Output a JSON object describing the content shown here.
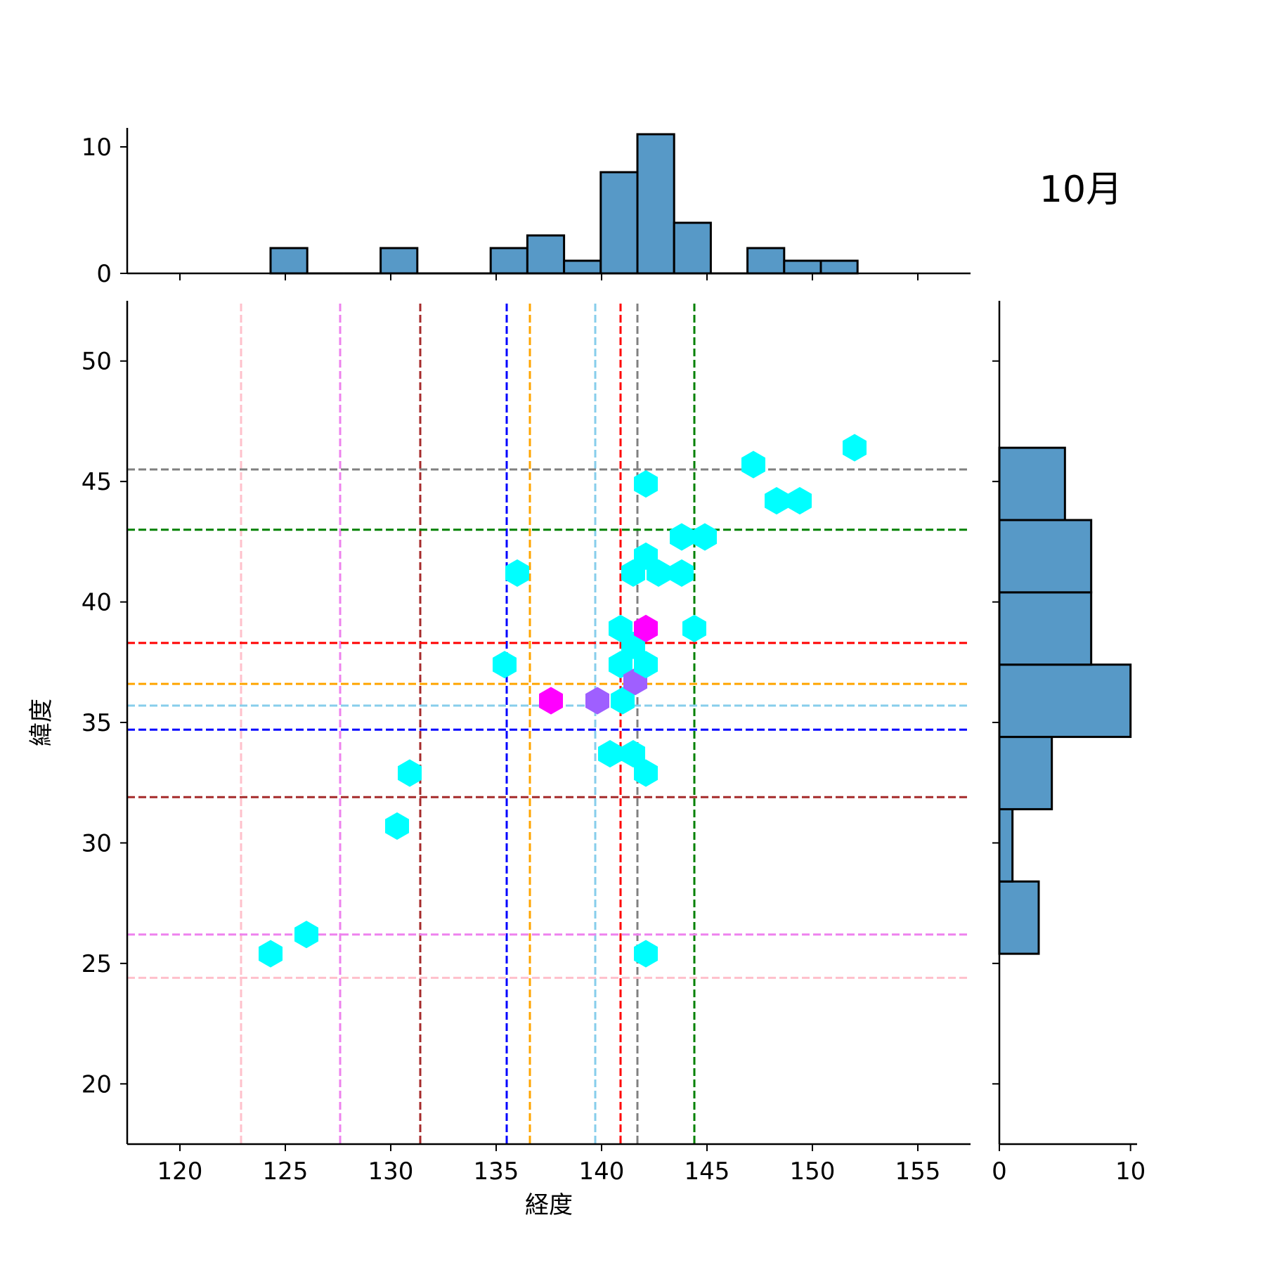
{
  "chart_data": {
    "type": "joint-hexbin",
    "title": "10月",
    "xlabel": "経度",
    "ylabel": "緯度",
    "xlim": [
      117.5,
      157.5
    ],
    "ylim": [
      17.5,
      52.5
    ],
    "x_ticks": [
      120,
      125,
      130,
      135,
      140,
      145,
      150,
      155
    ],
    "y_ticks": [
      20,
      25,
      30,
      35,
      40,
      45,
      50
    ],
    "hexbins": [
      {
        "x": 124.3,
        "y": 25.4,
        "color": "#00FFFF"
      },
      {
        "x": 126.0,
        "y": 26.2,
        "color": "#00FFFF"
      },
      {
        "x": 130.3,
        "y": 30.7,
        "color": "#00FFFF"
      },
      {
        "x": 130.9,
        "y": 32.9,
        "color": "#00FFFF"
      },
      {
        "x": 135.4,
        "y": 37.4,
        "color": "#00FFFF"
      },
      {
        "x": 136.0,
        "y": 41.2,
        "color": "#00FFFF"
      },
      {
        "x": 137.6,
        "y": 35.9,
        "color": "#FF00FF"
      },
      {
        "x": 139.8,
        "y": 35.9,
        "color": "#9F5FFF"
      },
      {
        "x": 140.4,
        "y": 33.7,
        "color": "#00FFFF"
      },
      {
        "x": 140.9,
        "y": 38.9,
        "color": "#00FFFF"
      },
      {
        "x": 140.9,
        "y": 37.4,
        "color": "#00FFFF"
      },
      {
        "x": 141.0,
        "y": 35.9,
        "color": "#00FFFF"
      },
      {
        "x": 141.5,
        "y": 41.2,
        "color": "#00FFFF"
      },
      {
        "x": 141.5,
        "y": 38.2,
        "color": "#00FFFF"
      },
      {
        "x": 141.5,
        "y": 33.7,
        "color": "#00FFFF"
      },
      {
        "x": 141.6,
        "y": 36.7,
        "color": "#9F5FFF"
      },
      {
        "x": 142.1,
        "y": 44.9,
        "color": "#00FFFF"
      },
      {
        "x": 142.1,
        "y": 41.9,
        "color": "#00FFFF"
      },
      {
        "x": 142.1,
        "y": 38.9,
        "color": "#FF00FF"
      },
      {
        "x": 142.1,
        "y": 37.4,
        "color": "#00FFFF"
      },
      {
        "x": 142.1,
        "y": 32.9,
        "color": "#00FFFF"
      },
      {
        "x": 142.1,
        "y": 25.4,
        "color": "#00FFFF"
      },
      {
        "x": 142.7,
        "y": 41.2,
        "color": "#00FFFF"
      },
      {
        "x": 143.8,
        "y": 41.2,
        "color": "#00FFFF"
      },
      {
        "x": 143.8,
        "y": 42.7,
        "color": "#00FFFF"
      },
      {
        "x": 144.4,
        "y": 38.9,
        "color": "#00FFFF"
      },
      {
        "x": 144.9,
        "y": 42.7,
        "color": "#00FFFF"
      },
      {
        "x": 147.2,
        "y": 45.7,
        "color": "#00FFFF"
      },
      {
        "x": 148.3,
        "y": 44.2,
        "color": "#00FFFF"
      },
      {
        "x": 149.4,
        "y": 44.2,
        "color": "#00FFFF"
      },
      {
        "x": 152.0,
        "y": 46.4,
        "color": "#00FFFF"
      }
    ],
    "vlines": [
      {
        "x": 122.9,
        "color": "#FFC0CB"
      },
      {
        "x": 127.6,
        "color": "#EE82EE"
      },
      {
        "x": 131.4,
        "color": "#A52A2A"
      },
      {
        "x": 135.5,
        "color": "#0000FF"
      },
      {
        "x": 136.6,
        "color": "#FFA500"
      },
      {
        "x": 139.7,
        "color": "#87CEEB"
      },
      {
        "x": 140.9,
        "color": "#FF0000"
      },
      {
        "x": 141.7,
        "color": "#808080"
      },
      {
        "x": 144.4,
        "color": "#008000"
      }
    ],
    "hlines": [
      {
        "y": 45.5,
        "color": "#808080"
      },
      {
        "y": 43.0,
        "color": "#008000"
      },
      {
        "y": 38.3,
        "color": "#FF0000"
      },
      {
        "y": 36.6,
        "color": "#FFA500"
      },
      {
        "y": 35.7,
        "color": "#87CEEB"
      },
      {
        "y": 34.7,
        "color": "#0000FF"
      },
      {
        "y": 31.9,
        "color": "#A52A2A"
      },
      {
        "y": 26.2,
        "color": "#EE82EE"
      },
      {
        "y": 24.4,
        "color": "#FFC0CB"
      }
    ],
    "top_histogram": {
      "bin_edges": [
        124.3,
        126.04,
        127.78,
        129.52,
        131.26,
        133.0,
        134.74,
        136.48,
        138.22,
        139.96,
        141.7,
        143.44,
        145.18,
        146.92,
        148.66,
        150.4,
        152.14
      ],
      "counts": [
        2,
        0,
        0,
        2,
        0,
        0,
        2,
        3,
        1,
        8,
        11,
        4,
        0,
        2,
        1,
        1
      ],
      "ylim": [
        0,
        11.5
      ],
      "y_ticks": [
        0,
        10
      ],
      "color": "#5799C7"
    },
    "right_histogram": {
      "bin_edges": [
        25.4,
        28.4,
        31.4,
        34.4,
        37.4,
        40.4,
        43.4,
        46.4
      ],
      "counts": [
        3,
        1,
        4,
        10,
        7,
        7,
        5
      ],
      "xlim": [
        0,
        10.5
      ],
      "x_ticks": [
        0,
        10
      ],
      "color": "#5799C7"
    }
  }
}
